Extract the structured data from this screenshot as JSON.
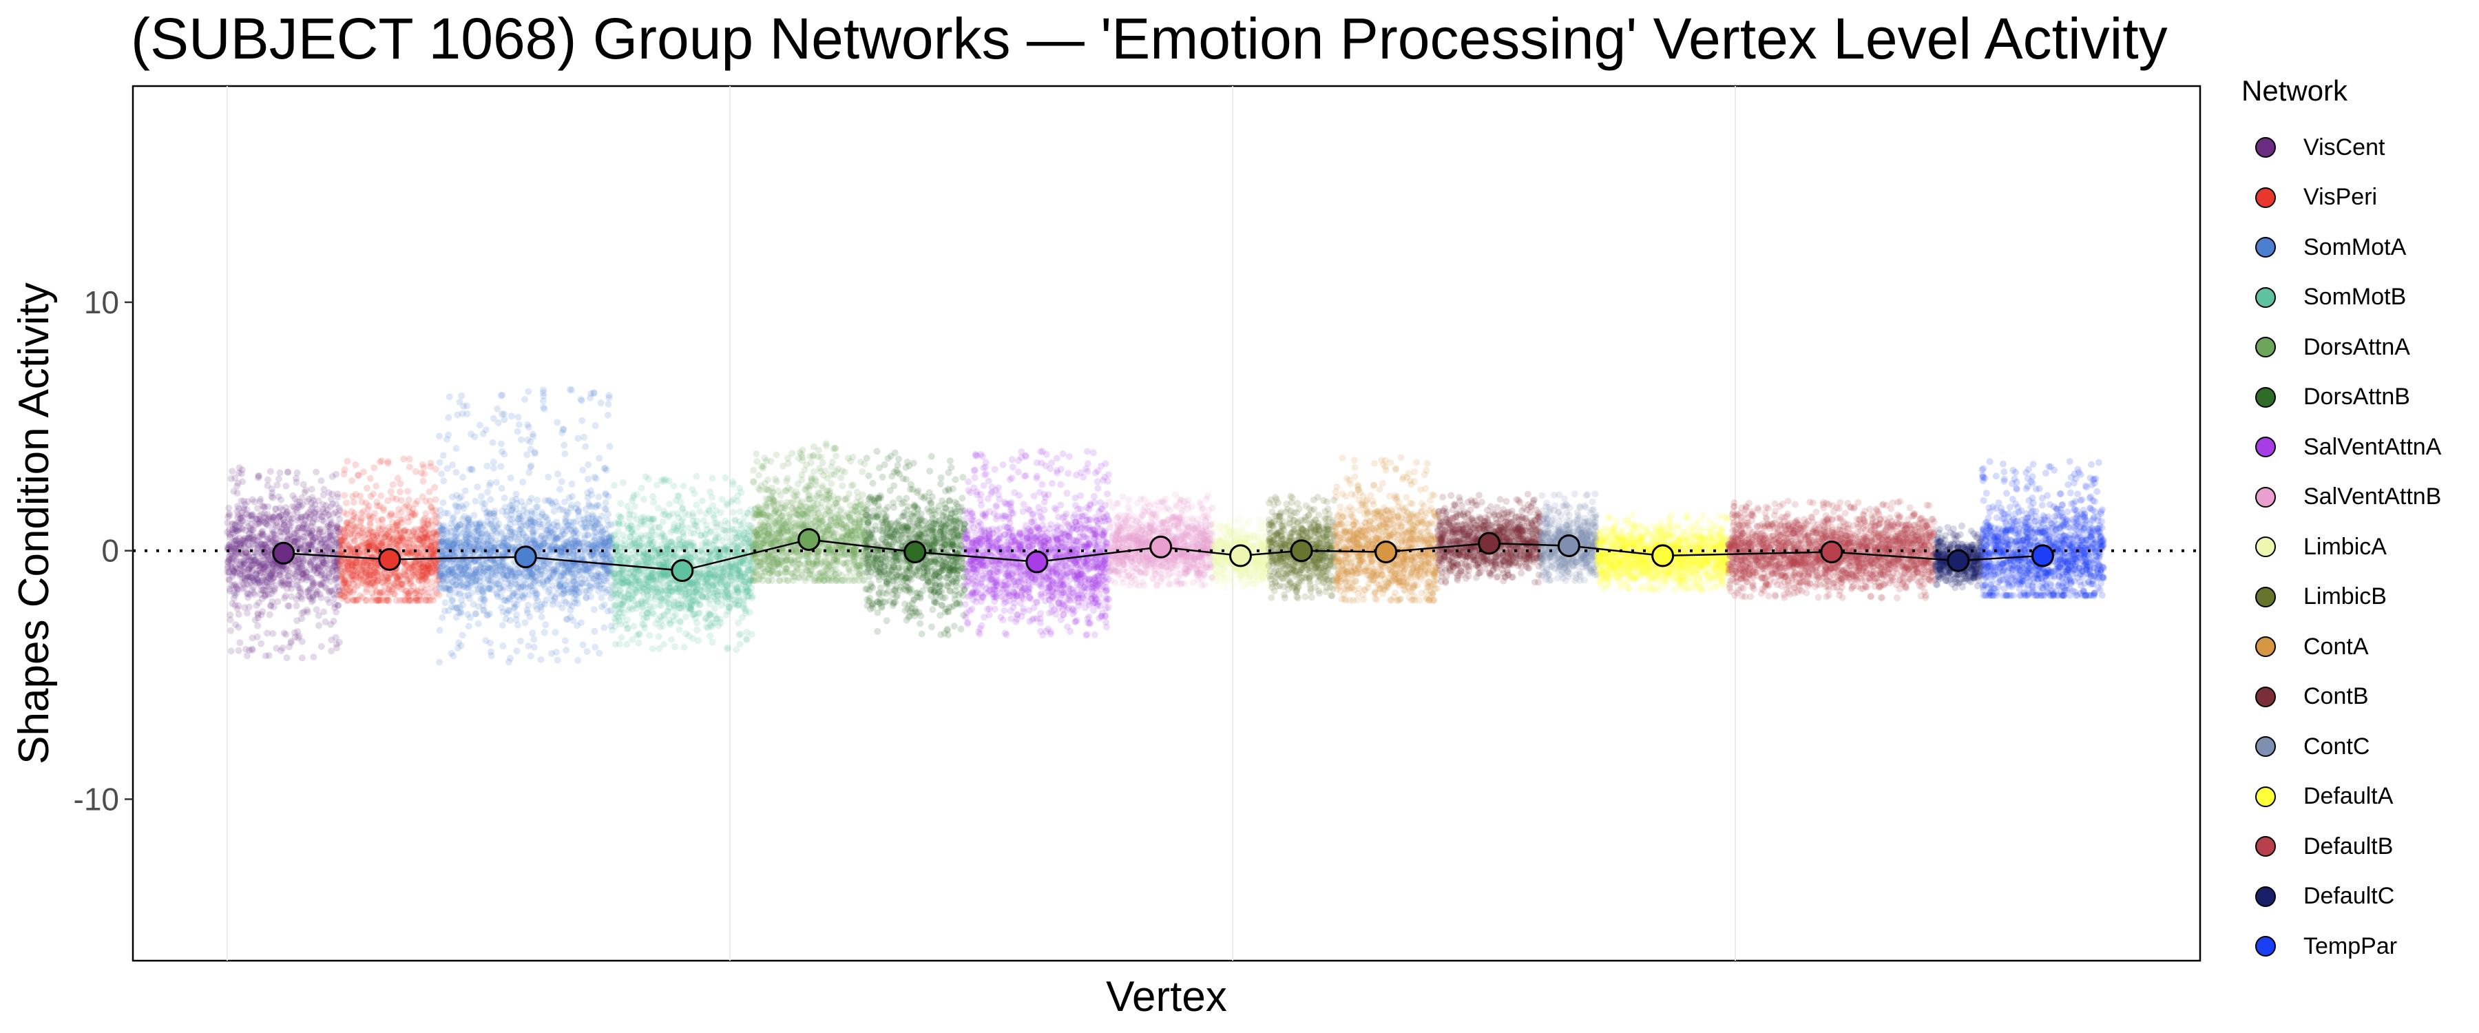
{
  "chart_data": {
    "type": "scatter",
    "title": "(SUBJECT 1068) Group Networks — 'Emotion Processing' Vertex Level Activity",
    "xlabel": "Vertex",
    "ylabel": "Shapes Condition Activity",
    "ylim": [
      -16.5,
      18.7
    ],
    "yticks": [
      -10,
      0,
      10
    ],
    "reference_line_y": 0,
    "grid": "major x/y, light",
    "legend": {
      "title": "Network",
      "placement": "right"
    },
    "networks": [
      {
        "name": "VisCent",
        "color": "#6B2D83",
        "mean": -0.1,
        "lo": -4.5,
        "hi": 3.4,
        "x_start": 0,
        "x_end": 0.06
      },
      {
        "name": "VisPeri",
        "color": "#E8382D",
        "mean": -0.35,
        "lo": -2.0,
        "hi": 3.7,
        "x_start": 0.06,
        "x_end": 0.113
      },
      {
        "name": "SomMotA",
        "color": "#4B7FD0",
        "mean": -0.25,
        "lo": -4.5,
        "hi": 6.5,
        "x_start": 0.113,
        "x_end": 0.205
      },
      {
        "name": "SomMotB",
        "color": "#5EC1A0",
        "mean": -0.8,
        "lo": -4.0,
        "hi": 3.0,
        "x_start": 0.205,
        "x_end": 0.28
      },
      {
        "name": "DorsAttnA",
        "color": "#6DA55B",
        "mean": 0.45,
        "lo": -1.2,
        "hi": 4.4,
        "x_start": 0.28,
        "x_end": 0.34
      },
      {
        "name": "DorsAttnB",
        "color": "#2D6B26",
        "mean": -0.05,
        "lo": -3.4,
        "hi": 4.2,
        "x_start": 0.34,
        "x_end": 0.393
      },
      {
        "name": "SalVentAttnA",
        "color": "#A83DE8",
        "mean": -0.45,
        "lo": -3.4,
        "hi": 4.0,
        "x_start": 0.393,
        "x_end": 0.47
      },
      {
        "name": "SalVentAttnB",
        "color": "#E9A0D0",
        "mean": 0.15,
        "lo": -1.4,
        "hi": 2.3,
        "x_start": 0.47,
        "x_end": 0.525
      },
      {
        "name": "LimbicA",
        "color": "#EEF7B0",
        "mean": -0.2,
        "lo": -1.5,
        "hi": 1.3,
        "x_start": 0.525,
        "x_end": 0.555
      },
      {
        "name": "LimbicB",
        "color": "#66752E",
        "mean": 0.0,
        "lo": -1.9,
        "hi": 2.2,
        "x_start": 0.555,
        "x_end": 0.59
      },
      {
        "name": "ContA",
        "color": "#D79742",
        "mean": -0.05,
        "lo": -2.0,
        "hi": 3.8,
        "x_start": 0.59,
        "x_end": 0.645
      },
      {
        "name": "ContB",
        "color": "#7A2E38",
        "mean": 0.3,
        "lo": -1.3,
        "hi": 2.3,
        "x_start": 0.645,
        "x_end": 0.7
      },
      {
        "name": "ContC",
        "color": "#7E8FB2",
        "mean": 0.2,
        "lo": -1.2,
        "hi": 2.3,
        "x_start": 0.7,
        "x_end": 0.73
      },
      {
        "name": "DefaultA",
        "color": "#FFFF3A",
        "mean": -0.2,
        "lo": -1.6,
        "hi": 1.5,
        "x_start": 0.73,
        "x_end": 0.8
      },
      {
        "name": "DefaultB",
        "color": "#B8404C",
        "mean": -0.05,
        "lo": -1.9,
        "hi": 2.0,
        "x_start": 0.8,
        "x_end": 0.91
      },
      {
        "name": "DefaultC",
        "color": "#1A1F6A",
        "mean": -0.4,
        "lo": -1.5,
        "hi": 1.0,
        "x_start": 0.91,
        "x_end": 0.935
      },
      {
        "name": "TempPar",
        "color": "#1A3FF5",
        "mean": -0.2,
        "lo": -1.8,
        "hi": 3.6,
        "x_start": 0.935,
        "x_end": 1.0
      }
    ]
  }
}
